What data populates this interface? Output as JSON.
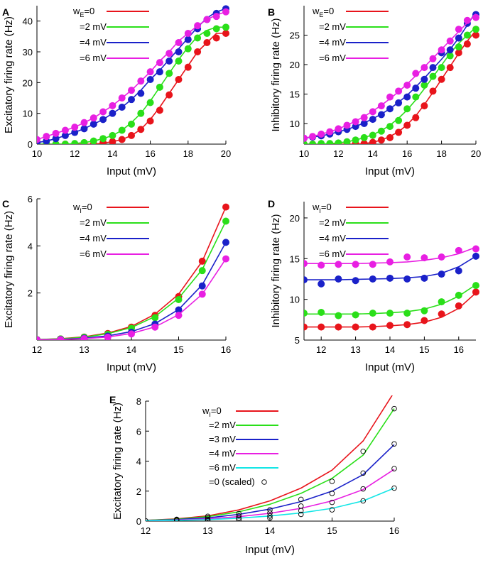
{
  "chart_data": [
    {
      "panel": "A",
      "type": "line",
      "xlabel": "Input (mV)",
      "ylabel": "Excitatory firing rate (Hz)",
      "xlim": [
        10,
        20
      ],
      "ylim": [
        0,
        45
      ],
      "xticks": [
        10,
        12,
        14,
        16,
        18,
        20
      ],
      "yticks": [
        0,
        10,
        20,
        30,
        40
      ],
      "legend_param": "w",
      "legend_sub": "E",
      "x": [
        10,
        10.5,
        11,
        11.5,
        12,
        12.5,
        13,
        13.5,
        14,
        14.5,
        15,
        15.5,
        16,
        16.5,
        17,
        17.5,
        18,
        18.5,
        19,
        19.5,
        20
      ],
      "series": [
        {
          "name": "=0",
          "color": "#e8141b",
          "curve": [
            0,
            0,
            0,
            0,
            0,
            0,
            0,
            0.3,
            0.8,
            1.5,
            2.8,
            4.8,
            8,
            12,
            16.5,
            21,
            25.5,
            30,
            33,
            36,
            36
          ],
          "points": [
            0,
            0,
            0,
            0,
            0,
            0,
            0,
            0.5,
            0.8,
            1.5,
            2.8,
            4.8,
            7.5,
            11,
            16,
            21,
            25,
            30,
            33,
            34.5,
            36
          ]
        },
        {
          "name": "=2 mV",
          "color": "#2adf19",
          "curve": [
            0,
            0,
            0,
            0,
            0.2,
            0.5,
            1,
            1.8,
            2.8,
            4.5,
            7,
            10,
            14,
            18.5,
            23,
            27.5,
            31.5,
            35,
            37,
            38,
            38
          ],
          "points": [
            0,
            0,
            0,
            0,
            0.2,
            0.5,
            1,
            1.8,
            2.8,
            4.5,
            6.5,
            10,
            13.5,
            18.5,
            23,
            27,
            31,
            34.5,
            36,
            37.5,
            38
          ]
        },
        {
          "name": "=4 mV",
          "color": "#1a21c9",
          "curve": [
            0.5,
            1,
            1.8,
            2.8,
            3.8,
            5,
            6.5,
            8,
            10,
            12,
            14.5,
            17.5,
            21,
            24,
            27.5,
            31,
            34.5,
            38,
            41,
            43,
            44
          ],
          "points": [
            0.5,
            1,
            1.8,
            2.8,
            3.8,
            5,
            6.5,
            8,
            10,
            12,
            14.5,
            16.5,
            21,
            23.5,
            27,
            30,
            34,
            37.5,
            40.5,
            42.5,
            44
          ]
        },
        {
          "name": "=6 mV",
          "color": "#e81fe2",
          "curve": [
            1.5,
            2.5,
            3.5,
            4.5,
            5.5,
            7,
            8.5,
            10.5,
            12.5,
            15,
            17.5,
            20.5,
            23.5,
            27,
            30,
            33.5,
            36,
            38.5,
            40.5,
            42,
            43
          ],
          "points": [
            1.5,
            2.5,
            3.5,
            4.5,
            5.5,
            7,
            8.5,
            10.5,
            12.5,
            15,
            17.5,
            20.5,
            23.5,
            26.5,
            29.5,
            33,
            36,
            38.5,
            40.5,
            41.5,
            43
          ]
        }
      ]
    },
    {
      "panel": "B",
      "type": "line",
      "xlabel": "Input (mV)",
      "ylabel": "Inhibitory firing rate (Hz)",
      "xlim": [
        10,
        20
      ],
      "ylim": [
        6.5,
        30
      ],
      "xticks": [
        10,
        12,
        14,
        16,
        18,
        20
      ],
      "yticks": [
        10,
        15,
        20,
        25
      ],
      "legend_param": "w",
      "legend_sub": "E",
      "x": [
        10,
        10.5,
        11,
        11.5,
        12,
        12.5,
        13,
        13.5,
        14,
        14.5,
        15,
        15.5,
        16,
        16.5,
        17,
        17.5,
        18,
        18.5,
        19,
        19.5,
        20
      ],
      "series": [
        {
          "name": "=0",
          "color": "#e8141b",
          "curve": [
            6.5,
            6.5,
            6.5,
            6.5,
            6.5,
            6.5,
            6.5,
            6.6,
            6.8,
            7.2,
            7.8,
            8.6,
            9.8,
            11.3,
            13.2,
            15.3,
            17.5,
            19.7,
            21.9,
            24,
            25.8
          ],
          "points": [
            6.5,
            6.5,
            6.5,
            6.5,
            6.5,
            6.5,
            6.6,
            6.6,
            6.8,
            7.2,
            7.6,
            8.5,
            9.7,
            11,
            13,
            15.5,
            17.5,
            19.5,
            22,
            23.5,
            25
          ]
        },
        {
          "name": "=2 mV",
          "color": "#2adf19",
          "curve": [
            6.5,
            6.5,
            6.5,
            6.6,
            6.7,
            6.9,
            7.2,
            7.6,
            8.1,
            8.8,
            9.7,
            10.9,
            12.3,
            14,
            15.9,
            17.9,
            19.9,
            21.9,
            23.6,
            25,
            26.3
          ],
          "points": [
            6.5,
            6.5,
            6.6,
            6.6,
            6.7,
            6.9,
            7.2,
            7.6,
            8,
            8.7,
            9.5,
            10.5,
            12.5,
            14.5,
            16.5,
            18,
            19.5,
            21.5,
            23,
            25,
            26
          ]
        },
        {
          "name": "=4 mV",
          "color": "#1a21c9",
          "curve": [
            7.5,
            7.7,
            7.9,
            8.2,
            8.6,
            9,
            9.5,
            10.1,
            10.8,
            11.6,
            12.5,
            13.6,
            14.8,
            16.2,
            17.7,
            19.3,
            20.9,
            22.6,
            24.5,
            26.7,
            29
          ],
          "points": [
            7.5,
            7.7,
            7.9,
            8.2,
            8.6,
            9,
            9.5,
            10,
            10.7,
            11.5,
            12.5,
            13.5,
            14.5,
            16,
            17.5,
            19.5,
            22,
            22.5,
            24.5,
            27,
            28.5
          ]
        },
        {
          "name": "=6 mV",
          "color": "#e81fe2",
          "curve": [
            7.5,
            7.8,
            8.2,
            8.6,
            9.1,
            9.7,
            10.4,
            11.2,
            12.1,
            13.1,
            14.2,
            15.4,
            16.7,
            18.1,
            19.6,
            21.1,
            22.6,
            24.1,
            25.6,
            27.1,
            28.6
          ],
          "points": [
            7.5,
            7.8,
            8.2,
            8.6,
            9.1,
            9.7,
            10.3,
            11,
            12,
            13,
            14.5,
            15.5,
            16.5,
            18.5,
            19.5,
            21,
            22.5,
            24,
            26,
            27.5,
            28
          ]
        }
      ]
    },
    {
      "panel": "C",
      "type": "line",
      "xlabel": "Input (mV)",
      "ylabel": "Excitatory firing rate (Hz)",
      "xlim": [
        12,
        16
      ],
      "ylim": [
        0,
        6
      ],
      "xticks": [
        12,
        13,
        14,
        15,
        16
      ],
      "yticks": [
        2,
        4,
        6
      ],
      "legend_param": "w",
      "legend_sub": "I",
      "x": [
        12,
        12.5,
        13,
        13.5,
        14,
        14.5,
        15,
        15.5,
        16
      ],
      "series": [
        {
          "name": "=0",
          "color": "#e8141b",
          "curve": [
            0.02,
            0.06,
            0.14,
            0.3,
            0.58,
            1.1,
            1.95,
            3.35,
            5.65
          ],
          "points": [
            0.02,
            0.05,
            0.13,
            0.28,
            0.55,
            1.05,
            1.85,
            3.35,
            5.65
          ]
        },
        {
          "name": "=2 mV",
          "color": "#2adf19",
          "curve": [
            0.02,
            0.05,
            0.12,
            0.27,
            0.53,
            1,
            1.78,
            3.0,
            5.05
          ],
          "points": [
            0.02,
            0.05,
            0.12,
            0.25,
            0.5,
            0.95,
            1.72,
            2.95,
            5.05
          ]
        },
        {
          "name": "=4 mV",
          "color": "#1a21c9",
          "curve": [
            0.01,
            0.03,
            0.08,
            0.18,
            0.36,
            0.7,
            1.3,
            2.35,
            4.15
          ],
          "points": [
            0.01,
            0.03,
            0.08,
            0.17,
            0.33,
            0.68,
            1.28,
            2.3,
            4.15
          ]
        },
        {
          "name": "=6 mV",
          "color": "#e81fe2",
          "curve": [
            0.01,
            0.02,
            0.06,
            0.13,
            0.28,
            0.56,
            1.08,
            1.95,
            3.45
          ],
          "points": [
            0.01,
            0.02,
            0.06,
            0.12,
            0.26,
            0.55,
            1.05,
            1.95,
            3.45
          ]
        }
      ]
    },
    {
      "panel": "D",
      "type": "line",
      "xlabel": "Input (mV)",
      "ylabel": "Inhibitory firing rate (Hz)",
      "xlim": [
        11.5,
        16.5
      ],
      "ylim": [
        5,
        22
      ],
      "xticks": [
        12,
        13,
        14,
        15,
        16
      ],
      "yticks": [
        5,
        10,
        15,
        20
      ],
      "legend_param": "w",
      "legend_sub": "I",
      "x": [
        11.5,
        12,
        12.5,
        13,
        13.5,
        14,
        14.5,
        15,
        15.5,
        16,
        16.5
      ],
      "series": [
        {
          "name": "=0",
          "color": "#e8141b",
          "curve": [
            6.6,
            6.6,
            6.6,
            6.6,
            6.65,
            6.75,
            6.9,
            7.2,
            7.8,
            8.9,
            10.8
          ],
          "points": [
            6.6,
            6.6,
            6.6,
            6.6,
            6.6,
            6.8,
            6.9,
            7.4,
            8.2,
            9.2,
            10.9
          ]
        },
        {
          "name": "=2 mV",
          "color": "#2adf19",
          "curve": [
            8.2,
            8.2,
            8.2,
            8.2,
            8.25,
            8.35,
            8.5,
            8.8,
            9.4,
            10.4,
            11.8
          ],
          "points": [
            8.3,
            8.4,
            8.0,
            8.1,
            8.3,
            8.3,
            8.3,
            8.6,
            9.7,
            10.5,
            11.7
          ]
        },
        {
          "name": "=4 mV",
          "color": "#1a21c9",
          "curve": [
            12.4,
            12.4,
            12.4,
            12.45,
            12.5,
            12.55,
            12.65,
            12.8,
            13.2,
            14.0,
            15.3
          ],
          "points": [
            12.4,
            11.9,
            12.5,
            12.3,
            12.5,
            12.6,
            12.5,
            12.6,
            13.1,
            13.5,
            15.3
          ]
        },
        {
          "name": "=6 mV",
          "color": "#e81fe2",
          "curve": [
            14.4,
            14.4,
            14.4,
            14.4,
            14.45,
            14.5,
            14.6,
            14.8,
            15.1,
            15.6,
            16.4
          ],
          "points": [
            14.4,
            14.2,
            14.3,
            14.3,
            14.3,
            14.6,
            15.2,
            15.1,
            15.2,
            16.0,
            16.2
          ]
        }
      ]
    },
    {
      "panel": "E",
      "type": "line",
      "xlabel": "Input (mV)",
      "ylabel": "Excitatory firing rate (Hz)",
      "xlim": [
        12,
        16
      ],
      "ylim": [
        0,
        8
      ],
      "xticks": [
        12,
        13,
        14,
        15,
        16
      ],
      "yticks": [
        0,
        2,
        4,
        6,
        8
      ],
      "legend_param": "w",
      "legend_sub": "I",
      "x": [
        12,
        12.5,
        13,
        13.5,
        14,
        14.5,
        15,
        15.5,
        16
      ],
      "series": [
        {
          "name": "=0",
          "color": "#e8141b",
          "curve": [
            0.05,
            0.15,
            0.35,
            0.75,
            1.35,
            2.2,
            3.4,
            5.35,
            8.6
          ]
        },
        {
          "name": "=2 mV",
          "color": "#2adf19",
          "curve": [
            0.05,
            0.13,
            0.3,
            0.62,
            1.12,
            1.85,
            2.85,
            4.4,
            7.5
          ]
        },
        {
          "name": "=3 mV",
          "color": "#1a21c9",
          "curve": [
            0.04,
            0.1,
            0.22,
            0.45,
            0.8,
            1.3,
            2.0,
            3.1,
            5.1
          ]
        },
        {
          "name": "=4 mV",
          "color": "#e81fe2",
          "curve": [
            0.03,
            0.07,
            0.15,
            0.3,
            0.52,
            0.85,
            1.35,
            2.1,
            3.45
          ]
        },
        {
          "name": "=6 mV",
          "color": "#13e6e6",
          "curve": [
            0.02,
            0.05,
            0.1,
            0.2,
            0.34,
            0.55,
            0.85,
            1.35,
            2.2
          ]
        }
      ],
      "scaled_marker": {
        "name": "=0 (scaled)",
        "points": [
          {
            "x": 12,
            "y": 0.02
          },
          {
            "x": 12.5,
            "y": 0.12
          },
          {
            "x": 12.5,
            "y": 0.08
          },
          {
            "x": 12.5,
            "y": 0.05
          },
          {
            "x": 13,
            "y": 0.32
          },
          {
            "x": 13,
            "y": 0.22
          },
          {
            "x": 13,
            "y": 0.12
          },
          {
            "x": 13,
            "y": 0.06
          },
          {
            "x": 13.5,
            "y": 0.5
          },
          {
            "x": 13.5,
            "y": 0.35
          },
          {
            "x": 13.5,
            "y": 0.2
          },
          {
            "x": 13.5,
            "y": 0.1
          },
          {
            "x": 14,
            "y": 0.75
          },
          {
            "x": 14,
            "y": 0.55
          },
          {
            "x": 14,
            "y": 0.35
          },
          {
            "x": 14,
            "y": 0.2
          },
          {
            "x": 14.5,
            "y": 1.45
          },
          {
            "x": 14.5,
            "y": 1.0
          },
          {
            "x": 14.5,
            "y": 0.7
          },
          {
            "x": 14.5,
            "y": 0.45
          },
          {
            "x": 15,
            "y": 2.65
          },
          {
            "x": 15,
            "y": 1.85
          },
          {
            "x": 15,
            "y": 1.25
          },
          {
            "x": 15,
            "y": 0.75
          },
          {
            "x": 15.5,
            "y": 4.65
          },
          {
            "x": 15.5,
            "y": 3.2
          },
          {
            "x": 15.5,
            "y": 2.15
          },
          {
            "x": 15.5,
            "y": 1.35
          },
          {
            "x": 16,
            "y": 7.5
          },
          {
            "x": 16,
            "y": 5.15
          },
          {
            "x": 16,
            "y": 3.5
          },
          {
            "x": 16,
            "y": 2.2
          }
        ]
      }
    }
  ]
}
